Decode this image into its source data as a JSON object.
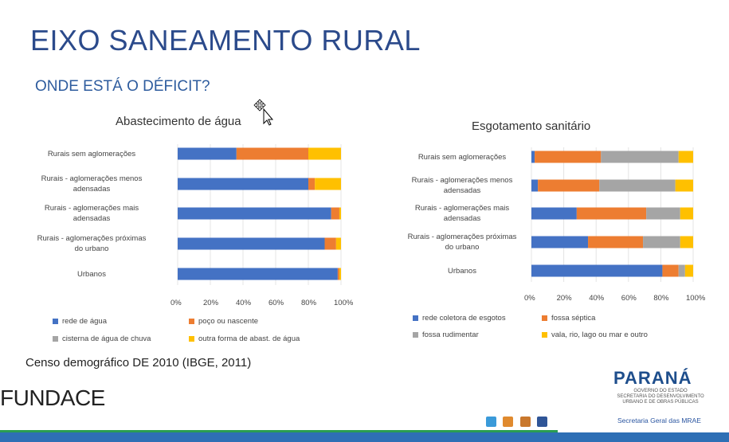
{
  "title": "EIXO SANEAMENTO RURAL",
  "subtitle": "ONDE ESTÁ O DÉFICIT?",
  "source": "Censo demográfico DE 2010 (IBGE, 2011)",
  "org": "FUNDACE",
  "logo": {
    "name": "PARANÁ",
    "subline1": "GOVERNO DO ESTADO",
    "subline2": "SECRETARIA DO DESENVOLVIMENTO",
    "subline3": "URBANO E DE OBRAS PÚBLICAS",
    "secretaria": "Secretaria Geral das MRAE"
  },
  "colors": {
    "blue": "#4472c4",
    "orange": "#ed7d31",
    "gray": "#a5a5a5",
    "yellow": "#ffc000"
  },
  "chart_data": [
    {
      "type": "bar",
      "orientation": "horizontal",
      "stacked": true,
      "title": "Abastecimento de água",
      "categories": [
        "Rurais sem aglomerações",
        "Rurais - aglomerações menos adensadas",
        "Rurais - aglomerações mais adensadas",
        "Rurais - aglomerações próximas do urbano",
        "Urbanos"
      ],
      "xticks": [
        "0%",
        "20%",
        "40%",
        "60%",
        "80%",
        "100%"
      ],
      "xlim": [
        0,
        100
      ],
      "series": [
        {
          "name": "rede de água",
          "color": "#4472c4",
          "values": [
            36,
            80,
            94,
            90,
            98
          ]
        },
        {
          "name": "poço ou nascente",
          "color": "#ed7d31",
          "values": [
            44,
            4,
            5,
            7,
            1
          ]
        },
        {
          "name": "cisterna de água de chuva",
          "color": "#a5a5a5",
          "values": [
            0,
            0,
            0,
            0,
            0
          ]
        },
        {
          "name": "outra forma de abast. de água",
          "color": "#ffc000",
          "values": [
            20,
            16,
            1,
            3,
            1
          ]
        }
      ],
      "legend_position": "bottom"
    },
    {
      "type": "bar",
      "orientation": "horizontal",
      "stacked": true,
      "title": "Esgotamento sanitário",
      "categories": [
        "Rurais sem aglomerações",
        "Rurais - aglomerações menos adensadas",
        "Rurais - aglomerações mais adensadas",
        "Rurais - aglomerações próximas do urbano",
        "Urbanos"
      ],
      "xticks": [
        "0%",
        "20%",
        "40%",
        "60%",
        "80%",
        "100%"
      ],
      "xlim": [
        0,
        100
      ],
      "series": [
        {
          "name": "rede coletora de esgotos",
          "color": "#4472c4",
          "values": [
            2,
            4,
            28,
            35,
            81
          ]
        },
        {
          "name": "fossa séptica",
          "color": "#ed7d31",
          "values": [
            41,
            38,
            43,
            34,
            10
          ]
        },
        {
          "name": "fossa rudimentar",
          "color": "#a5a5a5",
          "values": [
            48,
            47,
            21,
            23,
            4
          ]
        },
        {
          "name": "vala, rio, lago ou mar e outro",
          "color": "#ffc000",
          "values": [
            9,
            11,
            8,
            8,
            5
          ]
        }
      ],
      "legend_position": "bottom"
    }
  ]
}
